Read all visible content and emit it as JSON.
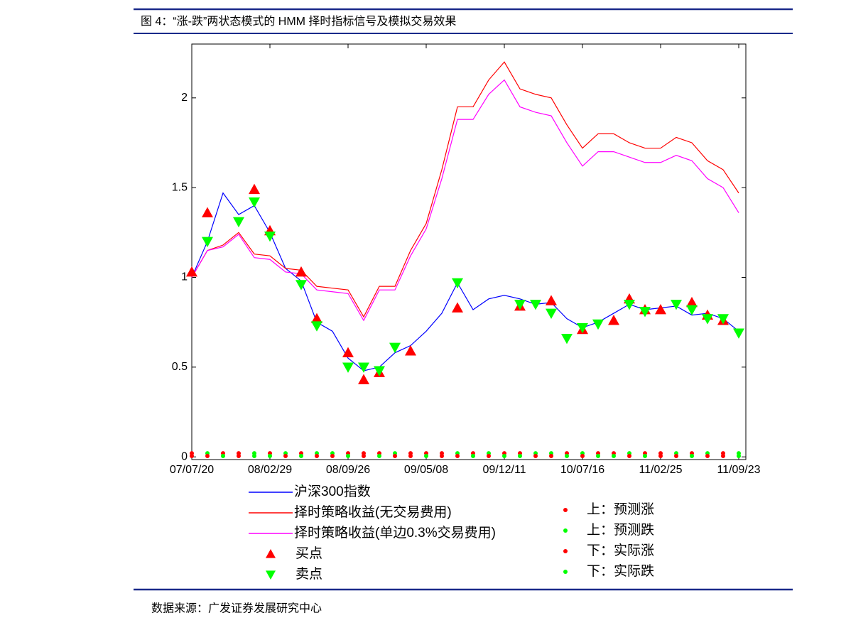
{
  "caption": "图 4：“涨-跌”两状态模式的 HMM 择时指标信号及模拟交易效果",
  "source": "数据来源：广发证券发展研究中心",
  "chart_data": {
    "type": "line",
    "categories": [
      "07/07/20",
      null,
      null,
      null,
      null,
      "08/02/29",
      null,
      null,
      null,
      null,
      "08/09/26",
      null,
      null,
      null,
      null,
      "09/05/08",
      null,
      null,
      null,
      null,
      "09/12/11",
      null,
      null,
      null,
      null,
      "10/07/16",
      null,
      null,
      null,
      null,
      "11/02/25",
      null,
      null,
      null,
      null,
      "11/09/23"
    ],
    "ylim": [
      -0.015,
      2.3
    ],
    "yticks": [
      0,
      0.5,
      1,
      1.5,
      2
    ],
    "series": [
      {
        "name": "沪深300指数",
        "color": "#0000ff",
        "style": "line",
        "values": [
          1.0,
          1.2,
          1.47,
          1.35,
          1.4,
          1.25,
          1.05,
          0.98,
          0.75,
          0.7,
          0.55,
          0.48,
          0.5,
          0.58,
          0.62,
          0.7,
          0.8,
          0.97,
          0.82,
          0.88,
          0.9,
          0.88,
          0.85,
          0.86,
          0.77,
          0.72,
          0.75,
          0.8,
          0.85,
          0.82,
          0.83,
          0.84,
          0.79,
          0.8,
          0.77,
          0.7
        ]
      },
      {
        "name": "择时策略收益(无交易费用)",
        "color": "#ff0000",
        "style": "line",
        "values": [
          1.0,
          1.15,
          1.18,
          1.25,
          1.13,
          1.12,
          1.05,
          1.04,
          0.95,
          0.94,
          0.93,
          0.78,
          0.95,
          0.95,
          1.15,
          1.3,
          1.6,
          1.95,
          1.95,
          2.1,
          2.2,
          2.05,
          2.02,
          2.0,
          1.85,
          1.72,
          1.8,
          1.8,
          1.75,
          1.72,
          1.72,
          1.78,
          1.75,
          1.65,
          1.6,
          1.47
        ]
      },
      {
        "name": "择时策略收益(单边0.3%交易费用)",
        "color": "#ff00ff",
        "style": "line",
        "values": [
          1.0,
          1.15,
          1.17,
          1.24,
          1.11,
          1.1,
          1.03,
          1.02,
          0.93,
          0.92,
          0.91,
          0.76,
          0.93,
          0.93,
          1.12,
          1.27,
          1.55,
          1.88,
          1.88,
          2.02,
          2.1,
          1.95,
          1.92,
          1.9,
          1.75,
          1.62,
          1.7,
          1.7,
          1.67,
          1.64,
          1.64,
          1.68,
          1.65,
          1.55,
          1.5,
          1.36
        ]
      },
      {
        "name": "买点",
        "color": "#ff0000",
        "style": "up",
        "values": [
          1.03,
          1.36,
          null,
          null,
          1.49,
          1.26,
          null,
          1.03,
          0.77,
          null,
          0.58,
          0.43,
          0.47,
          null,
          0.59,
          null,
          null,
          0.83,
          null,
          null,
          null,
          0.84,
          null,
          0.87,
          null,
          0.71,
          null,
          0.76,
          0.88,
          0.82,
          0.82,
          null,
          0.86,
          0.79,
          0.76,
          null
        ]
      },
      {
        "name": "卖点",
        "color": "#00ff00",
        "style": "down",
        "values": [
          null,
          1.2,
          null,
          1.31,
          1.42,
          1.23,
          null,
          0.96,
          0.73,
          null,
          0.5,
          0.5,
          0.48,
          0.61,
          null,
          null,
          null,
          0.97,
          null,
          null,
          null,
          0.85,
          0.85,
          0.8,
          0.66,
          0.72,
          0.74,
          null,
          0.85,
          0.81,
          null,
          0.85,
          0.82,
          0.77,
          0.77,
          0.69
        ]
      },
      {
        "name": "上：预测涨",
        "color": "#ff0000",
        "style": "dot",
        "values": [
          0.02,
          null,
          0.02,
          0.02,
          null,
          0.02,
          null,
          0.02,
          null,
          null,
          0.02,
          0.02,
          0.02,
          null,
          0.02,
          0.02,
          0.02,
          null,
          0.02,
          null,
          0.02,
          0.02,
          null,
          null,
          0.02,
          null,
          0.02,
          0.02,
          null,
          0.02,
          0.02,
          null,
          0.02,
          null,
          0.02,
          null
        ]
      },
      {
        "name": "上：预测跌",
        "color": "#00ff00",
        "style": "dot",
        "values": [
          null,
          0.02,
          null,
          null,
          0.02,
          null,
          0.02,
          null,
          0.02,
          0.02,
          null,
          null,
          null,
          0.02,
          null,
          null,
          null,
          0.02,
          null,
          0.02,
          null,
          null,
          0.02,
          0.02,
          null,
          0.02,
          null,
          null,
          0.02,
          null,
          null,
          0.02,
          null,
          0.02,
          null,
          0.02
        ]
      },
      {
        "name": "下：实际涨",
        "color": "#ff0000",
        "style": "dot",
        "values": [
          0.005,
          0.005,
          null,
          0.005,
          null,
          null,
          0.005,
          null,
          0.005,
          0.005,
          null,
          0.005,
          null,
          0.005,
          0.005,
          null,
          0.005,
          0.005,
          null,
          0.005,
          null,
          null,
          0.005,
          0.005,
          null,
          0.005,
          null,
          null,
          0.005,
          null,
          0.005,
          0.005,
          null,
          0.005,
          0.005,
          null
        ]
      },
      {
        "name": "下：实际跌",
        "color": "#00ff00",
        "style": "dot",
        "values": [
          null,
          null,
          0.005,
          null,
          0.005,
          0.005,
          null,
          0.005,
          null,
          null,
          0.005,
          null,
          0.005,
          null,
          null,
          0.005,
          null,
          null,
          0.005,
          null,
          0.005,
          0.005,
          null,
          null,
          0.005,
          null,
          0.005,
          0.005,
          null,
          0.005,
          null,
          null,
          0.005,
          null,
          null,
          0.005
        ]
      }
    ]
  }
}
